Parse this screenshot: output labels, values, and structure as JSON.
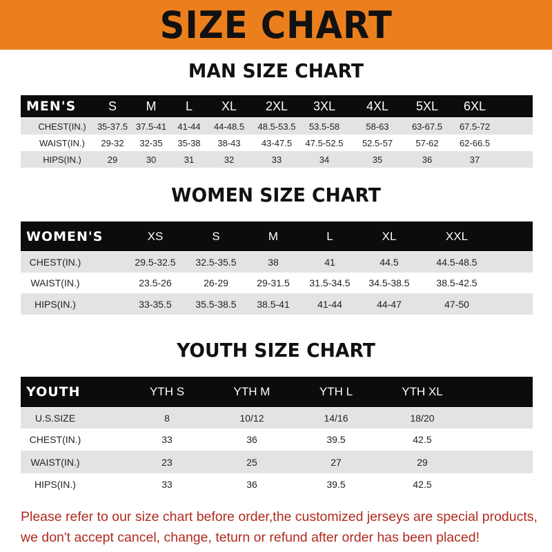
{
  "banner": {
    "title": "SIZE CHART",
    "color": "#ec7f1d"
  },
  "men": {
    "title": "MAN SIZE CHART",
    "header": "MEN'S",
    "sizes": [
      "S",
      "M",
      "L",
      "XL",
      "2XL",
      "3XL",
      "4XL",
      "5XL",
      "6XL"
    ],
    "rows": [
      {
        "label": "CHEST(IN.)",
        "values": [
          "35-37.5",
          "37.5-41",
          "41-44",
          "44-48.5",
          "48.5-53.5",
          "53.5-58",
          "58-63",
          "63-67.5",
          "67.5-72"
        ]
      },
      {
        "label": "WAIST(IN.)",
        "values": [
          "29-32",
          "32-35",
          "35-38",
          "38-43",
          "43-47.5",
          "47.5-52.5",
          "52.5-57",
          "57-62",
          "62-66.5"
        ]
      },
      {
        "label": "HIPS(IN.)",
        "values": [
          "29",
          "30",
          "31",
          "32",
          "33",
          "34",
          "35",
          "36",
          "37"
        ]
      }
    ]
  },
  "women": {
    "title": "WOMEN SIZE CHART",
    "header": "WOMEN'S",
    "sizes": [
      "XS",
      "S",
      "M",
      "L",
      "XL",
      "XXL"
    ],
    "rows": [
      {
        "label": "CHEST(IN.)",
        "values": [
          "29.5-32.5",
          "32.5-35.5",
          "38",
          "41",
          "44.5",
          "44.5-48.5"
        ]
      },
      {
        "label": "WAIST(IN.)",
        "values": [
          "23.5-26",
          "26-29",
          "29-31.5",
          "31.5-34.5",
          "34.5-38.5",
          "38.5-42.5"
        ]
      },
      {
        "label": "HIPS(IN.)",
        "values": [
          "33-35.5",
          "35.5-38.5",
          "38.5-41",
          "41-44",
          "44-47",
          "47-50"
        ]
      }
    ]
  },
  "youth": {
    "title": "YOUTH SIZE CHART",
    "header": "YOUTH",
    "sizes": [
      "YTH S",
      "YTH M",
      "YTH L",
      "YTH XL"
    ],
    "rows": [
      {
        "label": "U.S.SIZE",
        "values": [
          "8",
          "10/12",
          "14/16",
          "18/20"
        ]
      },
      {
        "label": "CHEST(IN.)",
        "values": [
          "33",
          "36",
          "39.5",
          "42.5"
        ]
      },
      {
        "label": "WAIST(IN.)",
        "values": [
          "23",
          "25",
          "27",
          "29"
        ]
      },
      {
        "label": "HIPS(IN.)",
        "values": [
          "33",
          "36",
          "39.5",
          "42.5"
        ]
      }
    ]
  },
  "footer": {
    "line1": "Please refer to our size chart before order,the customized jerseys are special products,",
    "line2": "we don't accept cancel, change, teturn or refund after order has been placed!",
    "color": "#b02a1f"
  }
}
